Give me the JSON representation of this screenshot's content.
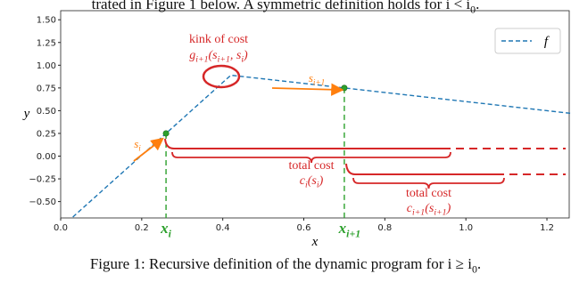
{
  "top_text": [
    "trated in Figure 1 below. A symmetric definition holds for i < i",
    "0",
    "."
  ],
  "caption": [
    "Figure 1: Recursive definition of the dynamic program for i ≥ i",
    "0",
    "."
  ],
  "chart_data": {
    "type": "line",
    "x_label": "x",
    "y_label": "y",
    "xlim": [
      0,
      1.255
    ],
    "ylim": [
      -0.68,
      1.6
    ],
    "xticks": [
      {
        "value": 0,
        "label": "0.0"
      },
      0.2,
      0.4,
      0.6,
      0.8,
      {
        "value": 1,
        "label": "1.0"
      },
      1.2
    ],
    "yticks": [
      {
        "value": -0.5,
        "label": "−0.50"
      },
      {
        "value": -0.25,
        "label": "−0.25"
      },
      {
        "value": 0,
        "label": "0.00"
      },
      {
        "value": 0.25,
        "label": "0.25"
      },
      {
        "value": 0.5,
        "label": "0.50"
      },
      {
        "value": 0.75,
        "label": "0.75"
      },
      {
        "value": 1,
        "label": "1.00"
      },
      {
        "value": 1.25,
        "label": "1.25"
      },
      {
        "value": 1.5,
        "label": "1.50"
      }
    ],
    "legend": "upper right",
    "series": [
      {
        "name": "f",
        "color": "#1f77b4",
        "x": [
          0.03,
          0.26,
          0.42,
          0.7,
          1.26
        ],
        "values": [
          -0.67,
          0.25,
          0.89,
          0.75,
          0.47
        ]
      }
    ],
    "markers": {
      "color": "#2ca02c",
      "x": [
        0.26,
        0.7
      ],
      "values": [
        0.25,
        0.75
      ],
      "labels": [
        [
          "x",
          "i"
        ],
        [
          "x",
          "i+1"
        ]
      ]
    },
    "annotations": {
      "kink_title": "kink of cost",
      "kink_formula": [
        "g",
        "i+1",
        "(s",
        "i+1",
        ", s",
        "i",
        ")"
      ],
      "s_i": [
        "s",
        "i"
      ],
      "s_i1": [
        "s",
        "i+1"
      ],
      "cost_i_title": "total cost",
      "cost_i_formula": [
        "c",
        "i",
        "(s",
        "i",
        ")"
      ],
      "cost_i1_title": "total cost",
      "cost_i1_formula": [
        "c",
        "i+1",
        "(s",
        "i+1",
        ")"
      ]
    }
  }
}
